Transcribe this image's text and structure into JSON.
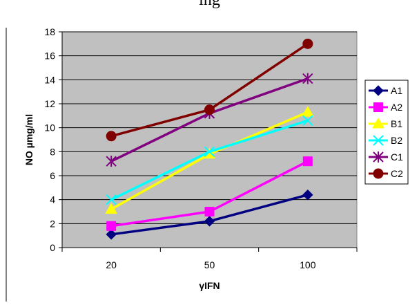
{
  "header": {
    "clipped_text": "ing"
  },
  "chart_data": {
    "type": "line",
    "categories": [
      "20",
      "50",
      "100"
    ],
    "xlabel": "γIFN",
    "ylabel": "NO µmg/ml",
    "ylim": [
      0,
      18
    ],
    "yticks": [
      0,
      2,
      4,
      6,
      8,
      10,
      12,
      14,
      16,
      18
    ],
    "grid": true,
    "plot_background": "#c0c0c0",
    "legend_position": "right",
    "series": [
      {
        "name": "A1",
        "values": [
          1.1,
          2.2,
          4.4
        ],
        "color": "#000080",
        "marker": "diamond"
      },
      {
        "name": "A2",
        "values": [
          1.8,
          3.0,
          7.2
        ],
        "color": "#ff00ff",
        "marker": "square"
      },
      {
        "name": "B1",
        "values": [
          3.2,
          7.8,
          11.3
        ],
        "color": "#ffff00",
        "marker": "triangle"
      },
      {
        "name": "B2",
        "values": [
          4.0,
          8.0,
          10.6
        ],
        "color": "#00ffff",
        "marker": "x"
      },
      {
        "name": "C1",
        "values": [
          7.2,
          11.2,
          14.1
        ],
        "color": "#800080",
        "marker": "star"
      },
      {
        "name": "C2",
        "values": [
          9.3,
          11.5,
          17.0
        ],
        "color": "#800000",
        "marker": "circle"
      }
    ]
  }
}
